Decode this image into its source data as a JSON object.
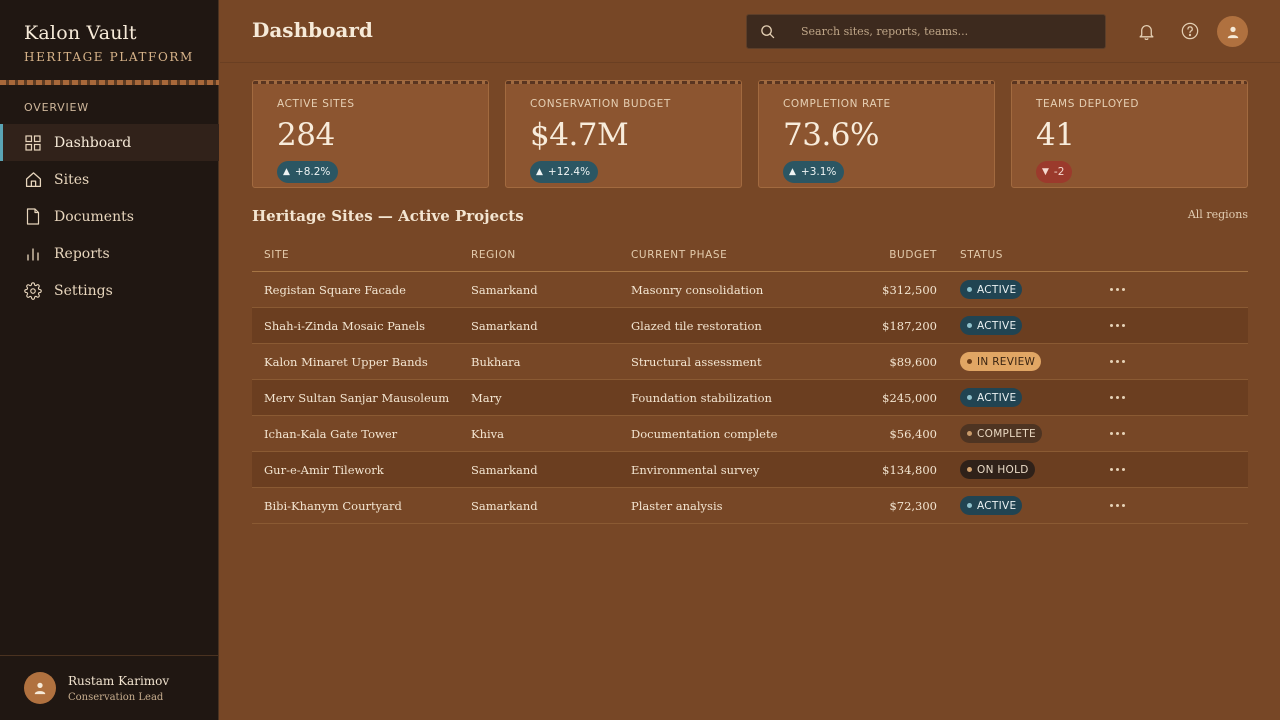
{
  "brand": {
    "title": "Kalon Vault",
    "subtitle": "HERITAGE PLATFORM"
  },
  "nav": {
    "section": "OVERVIEW",
    "items": [
      {
        "label": "Dashboard",
        "icon": "grid-icon",
        "active": true
      },
      {
        "label": "Sites",
        "icon": "home-icon",
        "active": false
      },
      {
        "label": "Documents",
        "icon": "document-icon",
        "active": false
      },
      {
        "label": "Reports",
        "icon": "bar-chart-icon",
        "active": false
      },
      {
        "label": "Settings",
        "icon": "gear-icon",
        "active": false
      }
    ]
  },
  "user": {
    "name": "Rustam Karimov",
    "role": "Conservation Lead"
  },
  "header": {
    "title": "Dashboard",
    "search_placeholder": "Search sites, reports, teams..."
  },
  "kpis": [
    {
      "label": "ACTIVE SITES",
      "value": "284",
      "delta": "+8.2%",
      "direction": "up"
    },
    {
      "label": "CONSERVATION BUDGET",
      "value": "$4.7M",
      "delta": "+12.4%",
      "direction": "up"
    },
    {
      "label": "COMPLETION RATE",
      "value": "73.6%",
      "delta": "+3.1%",
      "direction": "up"
    },
    {
      "label": "TEAMS DEPLOYED",
      "value": "41",
      "delta": "-2",
      "direction": "down"
    }
  ],
  "table": {
    "title": "Heritage Sites — Active Projects",
    "filter": "All regions",
    "columns": {
      "site": "SITE",
      "region": "REGION",
      "phase": "CURRENT PHASE",
      "budget": "BUDGET",
      "status": "STATUS"
    },
    "rows": [
      {
        "site": "Registan Square Facade",
        "region": "Samarkand",
        "phase": "Masonry consolidation",
        "budget": "$312,500",
        "status": "ACTIVE",
        "status_type": "active"
      },
      {
        "site": "Shah-i-Zinda Mosaic Panels",
        "region": "Samarkand",
        "phase": "Glazed tile restoration",
        "budget": "$187,200",
        "status": "ACTIVE",
        "status_type": "active"
      },
      {
        "site": "Kalon Minaret Upper Bands",
        "region": "Bukhara",
        "phase": "Structural assessment",
        "budget": "$89,600",
        "status": "IN REVIEW",
        "status_type": "review"
      },
      {
        "site": "Merv Sultan Sanjar Mausoleum",
        "region": "Mary",
        "phase": "Foundation stabilization",
        "budget": "$245,000",
        "status": "ACTIVE",
        "status_type": "active"
      },
      {
        "site": "Ichan-Kala Gate Tower",
        "region": "Khiva",
        "phase": "Documentation complete",
        "budget": "$56,400",
        "status": "COMPLETE",
        "status_type": "complete"
      },
      {
        "site": "Gur-e-Amir Tilework",
        "region": "Samarkand",
        "phase": "Environmental survey",
        "budget": "$134,800",
        "status": "ON HOLD",
        "status_type": "hold"
      },
      {
        "site": "Bibi-Khanym Courtyard",
        "region": "Samarkand",
        "phase": "Plaster analysis",
        "budget": "$72,300",
        "status": "ACTIVE",
        "status_type": "active"
      }
    ]
  },
  "colors": {
    "accent": "#5aa4b4",
    "background": "#774726",
    "sidebar": "#201712",
    "card": "#8c5530",
    "positive": "#2b5663",
    "negative": "#9b3a2c"
  }
}
